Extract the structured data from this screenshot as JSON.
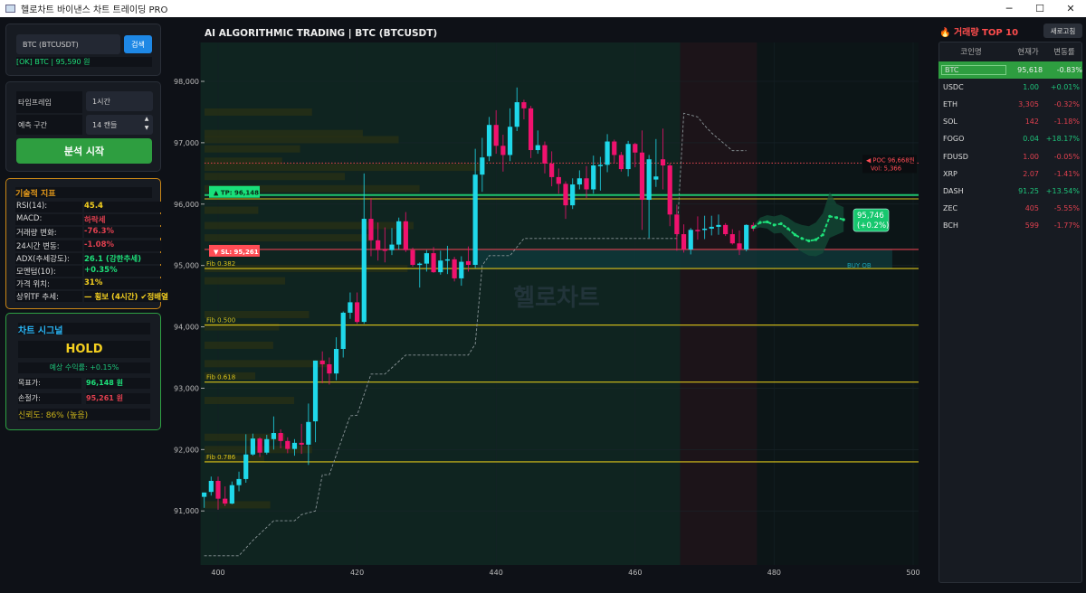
{
  "window": {
    "title": "헬로차트 바이낸스 차트 트레이딩 PRO",
    "controls": [
      "─",
      "☐",
      "✕"
    ]
  },
  "search": {
    "value": "BTC (BTCUSDT)",
    "button": "검색",
    "status": "[OK] BTC | 95,590 원"
  },
  "settings": {
    "timeframe_label": "타임프레임",
    "timeframe_value": "1시간",
    "horizon_label": "예측 구간",
    "horizon_value": "14 캔들",
    "start_button": "분석 시작"
  },
  "indicators": {
    "title": "기술적 지표",
    "rows": [
      {
        "k": "RSI(14):",
        "v": "45.4",
        "color": "#f5d020"
      },
      {
        "k": "MACD:",
        "v": "하락세",
        "color": "#e0404f"
      },
      {
        "k": "거래량 변화:",
        "v": "-76.3%",
        "color": "#e0404f"
      },
      {
        "k": "24시간 변동:",
        "v": "-1.08%",
        "color": "#e0404f"
      },
      {
        "k": "ADX(추세강도):",
        "v": "26.1 (강한추세)",
        "color": "#1ee07a"
      },
      {
        "k": "모멘텀(10):",
        "v": "+0.35%",
        "color": "#1ee07a"
      },
      {
        "k": "가격 위치:",
        "v": "31%",
        "color": "#f5d020"
      },
      {
        "k": "상위TF 추세:",
        "v": "— 횡보 (4시간) ✔정배열",
        "color": "#f5d020"
      }
    ]
  },
  "signal": {
    "title": "차트 시그널",
    "action": "HOLD",
    "expected": "예상 수익률: +0.15%",
    "target_label": "목표가:",
    "target_value": "96,148 원",
    "stop_label": "손절가:",
    "stop_value": "95,261 원",
    "confidence": "신뢰도: 86% (높음)"
  },
  "top10": {
    "title": "거래량 TOP 10",
    "icon": "fire-icon",
    "refresh": "새로고침",
    "headers": [
      "코인명",
      "현재가",
      "변동률"
    ],
    "rows": [
      {
        "name": "BTC",
        "price": "95,618",
        "change": "-0.83%",
        "dir": "dn",
        "selected": true
      },
      {
        "name": "USDC",
        "price": "1.00",
        "change": "+0.01%",
        "dir": "up"
      },
      {
        "name": "ETH",
        "price": "3,305",
        "change": "-0.32%",
        "dir": "dn"
      },
      {
        "name": "SOL",
        "price": "142",
        "change": "-1.18%",
        "dir": "dn"
      },
      {
        "name": "FOGO",
        "price": "0.04",
        "change": "+18.17%",
        "dir": "up"
      },
      {
        "name": "FDUSD",
        "price": "1.00",
        "change": "-0.05%",
        "dir": "dn"
      },
      {
        "name": "XRP",
        "price": "2.07",
        "change": "-1.41%",
        "dir": "dn"
      },
      {
        "name": "DASH",
        "price": "91.25",
        "change": "+13.54%",
        "dir": "up"
      },
      {
        "name": "ZEC",
        "price": "405",
        "change": "-5.55%",
        "dir": "dn"
      },
      {
        "name": "BCH",
        "price": "599",
        "change": "-1.77%",
        "dir": "dn"
      }
    ]
  },
  "chart_data": {
    "type": "candlestick",
    "title": "AI ALGORITHMIC TRADING | BTC (BTCUSDT)",
    "watermark": "헬로차트",
    "xlim": [
      398,
      502
    ],
    "ylim": [
      90200,
      98600
    ],
    "xticks": [
      400,
      420,
      440,
      460,
      480,
      500
    ],
    "yticks": [
      91000,
      92000,
      93000,
      94000,
      95000,
      96000,
      97000,
      98000
    ],
    "colors": {
      "bull": "#1fd8ea",
      "bear": "#f0126e",
      "forecast": "#1ee07a",
      "tp": "#1ec36e",
      "sl": "#e0404f",
      "fib": "#d9c21a",
      "poc": "#e0404f"
    },
    "start_index": 398,
    "ohlc": [
      [
        91230,
        91300,
        91050,
        91300
      ],
      [
        91310,
        91560,
        91250,
        91490
      ],
      [
        91490,
        91560,
        91020,
        91200
      ],
      [
        91200,
        91400,
        91080,
        91120
      ],
      [
        91120,
        91480,
        91110,
        91420
      ],
      [
        91420,
        91640,
        91320,
        91520
      ],
      [
        91520,
        92250,
        91460,
        91920
      ],
      [
        91920,
        92260,
        91900,
        92180
      ],
      [
        92180,
        92200,
        91880,
        91950
      ],
      [
        91950,
        92240,
        91920,
        92170
      ],
      [
        92170,
        92540,
        92000,
        92270
      ],
      [
        92270,
        92330,
        92020,
        92140
      ],
      [
        92140,
        92200,
        91940,
        92010
      ],
      [
        92010,
        92170,
        91900,
        92110
      ],
      [
        92110,
        92420,
        91930,
        92080
      ],
      [
        92080,
        92750,
        91750,
        92450
      ],
      [
        92460,
        93450,
        92120,
        93450
      ],
      [
        93450,
        93600,
        93080,
        93390
      ],
      [
        93390,
        93500,
        93060,
        93240
      ],
      [
        93240,
        93830,
        93130,
        93640
      ],
      [
        93640,
        94250,
        93500,
        94230
      ],
      [
        94230,
        94560,
        94130,
        94400
      ],
      [
        94400,
        94560,
        94050,
        94080
      ],
      [
        94080,
        96500,
        94050,
        95760
      ],
      [
        95760,
        96100,
        95150,
        95410
      ],
      [
        95410,
        95700,
        95080,
        95250
      ],
      [
        95260,
        95620,
        95050,
        95250
      ],
      [
        95250,
        95610,
        95170,
        95340
      ],
      [
        95340,
        95780,
        95260,
        95720
      ],
      [
        95720,
        95870,
        95220,
        95250
      ],
      [
        95250,
        95290,
        94980,
        95010
      ],
      [
        95020,
        95050,
        94640,
        95030
      ],
      [
        95030,
        95250,
        94900,
        95200
      ],
      [
        95200,
        95300,
        94880,
        94890
      ],
      [
        94890,
        95240,
        94850,
        95080
      ],
      [
        95090,
        95320,
        94860,
        95100
      ],
      [
        95100,
        95140,
        94740,
        94790
      ],
      [
        94790,
        95150,
        94670,
        95060
      ],
      [
        95070,
        95310,
        94900,
        95010
      ],
      [
        95010,
        96900,
        94960,
        96480
      ],
      [
        96480,
        97080,
        96200,
        96760
      ],
      [
        96780,
        97420,
        96700,
        97290
      ],
      [
        97290,
        97530,
        96820,
        96950
      ],
      [
        96950,
        97130,
        96530,
        96800
      ],
      [
        96800,
        97560,
        96700,
        97260
      ],
      [
        97260,
        97900,
        97190,
        97660
      ],
      [
        97660,
        97700,
        97380,
        97560
      ],
      [
        97560,
        97600,
        96750,
        96880
      ],
      [
        96880,
        97200,
        96820,
        96960
      ],
      [
        96960,
        97020,
        96500,
        96660
      ],
      [
        96660,
        96860,
        96290,
        96440
      ],
      [
        96440,
        96580,
        96170,
        96330
      ],
      [
        96330,
        96370,
        95760,
        95980
      ],
      [
        95980,
        96420,
        95920,
        96320
      ],
      [
        96320,
        96550,
        96240,
        96420
      ],
      [
        96420,
        96620,
        96100,
        96240
      ],
      [
        96240,
        96790,
        96170,
        96630
      ],
      [
        96620,
        96770,
        96220,
        96640
      ],
      [
        96640,
        97140,
        96520,
        97020
      ],
      [
        97020,
        97050,
        96660,
        96800
      ],
      [
        96800,
        96850,
        96530,
        96570
      ],
      [
        96570,
        97030,
        96450,
        96980
      ],
      [
        96980,
        97000,
        96600,
        96840
      ],
      [
        96840,
        97200,
        95580,
        96070
      ],
      [
        96070,
        96800,
        95450,
        96730
      ],
      [
        96400,
        97060,
        96280,
        96450
      ],
      [
        96730,
        97230,
        96240,
        96630
      ],
      [
        96630,
        96660,
        95640,
        95830
      ],
      [
        95830,
        95990,
        95240,
        95510
      ],
      [
        95510,
        95670,
        95210,
        95260
      ],
      [
        95260,
        95610,
        95180,
        95580
      ],
      [
        95580,
        95800,
        95420,
        95560
      ],
      [
        95590,
        95810,
        95430,
        95600
      ],
      [
        95600,
        95810,
        95490,
        95630
      ],
      [
        95630,
        95830,
        95500,
        95660
      ],
      [
        95660,
        95690,
        95480,
        95510
      ],
      [
        95510,
        95590,
        95340,
        95360
      ],
      [
        95360,
        95570,
        95170,
        95260
      ],
      [
        95260,
        95670,
        95230,
        95660
      ],
      [
        95660,
        95700,
        95560,
        95600
      ]
    ],
    "trailing_stop": [
      [
        398,
        90270
      ],
      [
        403,
        90270
      ],
      [
        405,
        90520
      ],
      [
        408,
        90840
      ],
      [
        411,
        90840
      ],
      [
        412,
        90940
      ],
      [
        414,
        91000
      ],
      [
        415,
        91590
      ],
      [
        416,
        91590
      ],
      [
        419,
        92550
      ],
      [
        420,
        92560
      ],
      [
        422,
        93230
      ],
      [
        424,
        93230
      ],
      [
        427,
        93540
      ],
      [
        436,
        93540
      ],
      [
        437,
        93720
      ],
      [
        438,
        95000
      ],
      [
        439,
        95160
      ],
      [
        442,
        95160
      ],
      [
        444,
        95440
      ],
      [
        466,
        95440
      ],
      [
        467,
        97480
      ],
      [
        469,
        97420
      ],
      [
        470,
        97280
      ],
      [
        471,
        97160
      ],
      [
        474,
        96870
      ],
      [
        476,
        96870
      ]
    ],
    "forecast": {
      "start_index": 477,
      "values": [
        95620,
        95700,
        95710,
        95660,
        95680,
        95600,
        95500,
        95440,
        95400,
        95420,
        95500,
        95800,
        95780,
        95746
      ],
      "upper": [
        95650,
        95780,
        95820,
        95800,
        95830,
        95780,
        95700,
        95660,
        95640,
        95700,
        95850,
        96200,
        96000,
        95950
      ],
      "lower": [
        95590,
        95620,
        95600,
        95520,
        95530,
        95420,
        95300,
        95220,
        95160,
        95150,
        95200,
        95450,
        95500,
        95550
      ],
      "label": "95,746",
      "label_pct": "(+0.2%)"
    },
    "levels": [
      {
        "kind": "tp",
        "price": 96148,
        "label": "▲ TP: 96,148"
      },
      {
        "kind": "fib",
        "price": 96085,
        "label": ""
      },
      {
        "kind": "sl",
        "price": 95261,
        "label": "▼ SL: 95,261"
      },
      {
        "kind": "fib",
        "price": 94950,
        "label": "Fib 0.382"
      },
      {
        "kind": "fib",
        "price": 94030,
        "label": "Fib 0.500"
      },
      {
        "kind": "fib",
        "price": 93100,
        "label": "Fib 0.618"
      },
      {
        "kind": "fib",
        "price": 91800,
        "label": "Fib 0.786"
      }
    ],
    "poc": {
      "price": 96668,
      "label": "◀ POC 96,668원",
      "vol": "Vol: 5,366"
    },
    "order_block": {
      "label": "BUY OB",
      "from_index": 437,
      "to_index": 497,
      "low": 94950,
      "high": 95260
    },
    "regions": [
      {
        "from_index": 398,
        "to_index": 466,
        "color": "#0f2420"
      },
      {
        "from_index": 467,
        "to_index": 477,
        "color": "#1c1419"
      }
    ],
    "volume_profile": [
      [
        97500,
        0.36
      ],
      [
        97150,
        0.53
      ],
      [
        97050,
        0.65
      ],
      [
        96900,
        0.32
      ],
      [
        96700,
        0.26
      ],
      [
        96600,
        0.93
      ],
      [
        96450,
        0.47
      ],
      [
        96250,
        0.72
      ],
      [
        95900,
        0.18
      ],
      [
        95650,
        0.7
      ],
      [
        95450,
        0.56
      ],
      [
        94950,
        0.68
      ],
      [
        94750,
        0.27
      ],
      [
        94200,
        0.35
      ],
      [
        94000,
        0.25
      ],
      [
        93700,
        0.23
      ],
      [
        93400,
        0.41
      ],
      [
        93200,
        0.17
      ],
      [
        92800,
        0.3
      ],
      [
        92200,
        0.27
      ],
      [
        92000,
        0.36
      ],
      [
        91850,
        0.2
      ],
      [
        91100,
        0.22
      ]
    ]
  }
}
